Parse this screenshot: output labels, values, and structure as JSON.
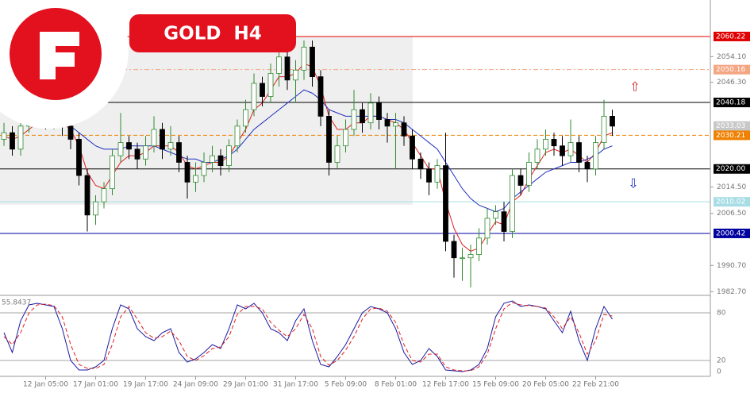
{
  "chart_data": [
    {
      "type": "candlestick",
      "title": "GOLD  H4",
      "categories": [
        null,
        null,
        null,
        null,
        null,
        "12 Jan 05:00",
        null,
        null,
        null,
        null,
        null,
        "17 Jan 01:00",
        null,
        null,
        null,
        null,
        null,
        "19 Jan 17:00",
        null,
        null,
        null,
        null,
        null,
        "24 Jan 09:00",
        null,
        null,
        null,
        null,
        null,
        "29 Jan 01:00",
        null,
        null,
        null,
        null,
        null,
        "31 Jan 17:00",
        null,
        null,
        null,
        null,
        null,
        "5 Feb 09:00",
        null,
        null,
        null,
        null,
        null,
        "8 Feb 01:00",
        null,
        null,
        null,
        null,
        null,
        "12 Feb 17:00",
        null,
        null,
        null,
        null,
        null,
        "15 Feb 09:00",
        null,
        null,
        null,
        null,
        null,
        "20 Feb 05:00",
        null,
        null,
        null,
        null,
        null,
        "22 Feb 21:00",
        null,
        null
      ],
      "open": [
        2029,
        2031,
        2026,
        2033,
        2035,
        2036,
        2034,
        2035,
        2033,
        2029,
        2018,
        2006,
        2010,
        2014,
        2024,
        2028,
        2026,
        2023,
        2027,
        2032,
        2026,
        2028,
        2022,
        2016,
        2018,
        2022,
        2024,
        2021,
        2027,
        2033,
        2038,
        2046,
        2042,
        2049,
        2054,
        2047,
        2050,
        2057,
        2048,
        2036,
        2022,
        2027,
        2032,
        2038,
        2034,
        2040,
        2035,
        2033,
        2034,
        2030,
        2023,
        2020,
        2016,
        2021,
        1998,
        1993,
        1993,
        1994,
        1999,
        2005,
        2007,
        2001,
        2018,
        2015,
        2022,
        2026,
        2029,
        2027,
        2024,
        2028,
        2022,
        2020,
        2028,
        2036
      ],
      "high": [
        2034,
        2033,
        2035,
        2037,
        2038,
        2038,
        2040,
        2037,
        2035,
        2031,
        2020,
        2012,
        2016,
        2026,
        2037,
        2030,
        2028,
        2030,
        2036,
        2034,
        2033,
        2030,
        2024,
        2022,
        2025,
        2027,
        2026,
        2029,
        2035,
        2041,
        2049,
        2048,
        2052,
        2057,
        2056,
        2053,
        2059,
        2059,
        2050,
        2038,
        2030,
        2035,
        2044,
        2040,
        2043,
        2042,
        2037,
        2037,
        2036,
        2032,
        2025,
        2022,
        2023,
        2031,
        2000,
        1996,
        1997,
        2002,
        2008,
        2009,
        2010,
        2020,
        2020,
        2025,
        2029,
        2032,
        2031,
        2030,
        2035,
        2030,
        2024,
        2030,
        2041,
        2038
      ],
      "low": [
        2027,
        2024,
        2024,
        2031,
        2033,
        2032,
        2032,
        2030,
        2026,
        2015,
        2001,
        2003,
        2008,
        2012,
        2022,
        2023,
        2020,
        2021,
        2025,
        2023,
        2024,
        2019,
        2011,
        2013,
        2016,
        2019,
        2018,
        2019,
        2025,
        2031,
        2036,
        2039,
        2040,
        2045,
        2044,
        2040,
        2047,
        2045,
        2033,
        2018,
        2020,
        2025,
        2030,
        2031,
        2032,
        2032,
        2028,
        2020,
        2027,
        2020,
        2017,
        2012,
        2014,
        1995,
        1987,
        1986,
        1984,
        1992,
        1997,
        2003,
        1998,
        1999,
        2012,
        2013,
        2020,
        2024,
        2024,
        2021,
        2022,
        2019,
        2016,
        2018,
        2026,
        2030
      ],
      "close": [
        2031,
        2026,
        2033,
        2035,
        2036,
        2034,
        2035,
        2033,
        2029,
        2018,
        2006,
        2010,
        2014,
        2024,
        2028,
        2026,
        2023,
        2027,
        2032,
        2026,
        2028,
        2022,
        2016,
        2018,
        2022,
        2024,
        2021,
        2027,
        2033,
        2038,
        2046,
        2042,
        2049,
        2054,
        2047,
        2050,
        2057,
        2048,
        2036,
        2022,
        2027,
        2032,
        2038,
        2034,
        2040,
        2035,
        2033,
        2034,
        2030,
        2023,
        2020,
        2016,
        2021,
        1998,
        1993,
        1993,
        1994,
        1999,
        2005,
        2007,
        2001,
        2018,
        2015,
        2022,
        2026,
        2029,
        2027,
        2024,
        2028,
        2022,
        2020,
        2028,
        2036,
        2033
      ],
      "up_color": "#2e8b2e",
      "down_color": "#000000",
      "overlays": [
        {
          "color": "#e02020",
          "values": [
            2030,
            2029,
            2030,
            2032,
            2034,
            2034,
            2034,
            2034,
            2032,
            2027,
            2019,
            2015,
            2014,
            2018,
            2022,
            2024,
            2024,
            2025,
            2027,
            2027,
            2027,
            2025,
            2021,
            2020,
            2021,
            2022,
            2022,
            2024,
            2028,
            2032,
            2038,
            2040,
            2044,
            2048,
            2048,
            2049,
            2052,
            2051,
            2045,
            2036,
            2032,
            2032,
            2034,
            2034,
            2036,
            2036,
            2035,
            2034,
            2032,
            2028,
            2024,
            2020,
            2020,
            2010,
            2002,
            1997,
            1995,
            1996,
            2000,
            2004,
            2003,
            2010,
            2012,
            2017,
            2021,
            2025,
            2026,
            2025,
            2026,
            2024,
            2022,
            2025,
            2030,
            2031
          ]
        },
        {
          "color": "#2030c0",
          "values": [
            2038,
            2037,
            2036,
            2036,
            2036,
            2036,
            2035,
            2034,
            2033,
            2031,
            2029,
            2027,
            2026,
            2026,
            2026,
            2027,
            2027,
            2027,
            2027,
            2026,
            2025,
            2024,
            2023,
            2023,
            2022,
            2022,
            2023,
            2024,
            2026,
            2029,
            2032,
            2034,
            2036,
            2038,
            2040,
            2042,
            2044,
            2043,
            2041,
            2038,
            2037,
            2036,
            2036,
            2036,
            2036,
            2036,
            2035,
            2035,
            2034,
            2032,
            2030,
            2028,
            2026,
            2022,
            2018,
            2014,
            2011,
            2009,
            2008,
            2007,
            2008,
            2011,
            2013,
            2015,
            2017,
            2019,
            2020,
            2021,
            2022,
            2022,
            2023,
            2024,
            2026,
            2027
          ]
        }
      ],
      "levels": [
        {
          "value": 2060.22,
          "label": "2060.22",
          "color": "#e00000",
          "style": "solid"
        },
        {
          "value": 2050.16,
          "label": "2050.16",
          "color": "#f4a582",
          "style": "dashdot"
        },
        {
          "value": 2040.18,
          "label": "2040.18",
          "color": "#000000",
          "style": "solid"
        },
        {
          "value": 2033.03,
          "label": "2033.03",
          "color": "#c8c8c8",
          "style": "none"
        },
        {
          "value": 2030.21,
          "label": "2030.21",
          "color": "#f08000",
          "style": "dashed"
        },
        {
          "value": 2020.0,
          "label": "2020.00",
          "color": "#000000",
          "style": "solid"
        },
        {
          "value": 2010.02,
          "label": "2010.02",
          "color": "#a8dde6",
          "style": "solid"
        },
        {
          "value": 2000.42,
          "label": "2000.42",
          "color": "#0000a0",
          "style": "solid"
        }
      ],
      "ylim": [
        1981.6,
        2071.3
      ],
      "yticks": [
        {
          "value": 2054.1,
          "label": "2054.10"
        },
        {
          "value": 2046.3,
          "label": "2046.30"
        },
        {
          "value": 2014.5,
          "label": "2014.50"
        },
        {
          "value": 2006.5,
          "label": "2006.50"
        },
        {
          "value": 1990.7,
          "label": "1990.70"
        },
        {
          "value": 1982.7,
          "label": "1982.70"
        }
      ]
    },
    {
      "type": "line",
      "readout": "55.8437",
      "series": [
        {
          "color": "#1a1aa0",
          "style": "solid",
          "values": [
            55,
            30,
            70,
            90,
            92,
            90,
            88,
            60,
            20,
            8,
            8,
            12,
            20,
            60,
            90,
            85,
            60,
            50,
            45,
            55,
            60,
            30,
            18,
            22,
            30,
            40,
            35,
            60,
            90,
            85,
            92,
            80,
            60,
            55,
            45,
            70,
            85,
            45,
            15,
            12,
            25,
            40,
            60,
            80,
            88,
            85,
            80,
            60,
            30,
            15,
            20,
            35,
            25,
            8,
            7,
            6,
            8,
            15,
            35,
            75,
            92,
            95,
            88,
            90,
            88,
            85,
            70,
            55,
            82,
            45,
            20,
            60,
            88,
            72
          ]
        },
        {
          "color": "#e02020",
          "style": "dashed",
          "values": [
            50,
            40,
            55,
            80,
            90,
            91,
            89,
            75,
            40,
            15,
            10,
            10,
            15,
            40,
            75,
            88,
            72,
            55,
            48,
            50,
            57,
            45,
            25,
            20,
            26,
            35,
            37,
            50,
            78,
            88,
            88,
            85,
            68,
            58,
            50,
            60,
            78,
            60,
            25,
            14,
            20,
            33,
            50,
            72,
            85,
            86,
            82,
            68,
            40,
            20,
            18,
            28,
            28,
            12,
            8,
            7,
            7,
            12,
            28,
            60,
            85,
            93,
            90,
            89,
            88,
            86,
            75,
            60,
            75,
            55,
            28,
            45,
            78,
            76
          ]
        }
      ],
      "ylim": [
        0,
        100
      ],
      "yticks": [
        0,
        20,
        80
      ]
    }
  ]
}
